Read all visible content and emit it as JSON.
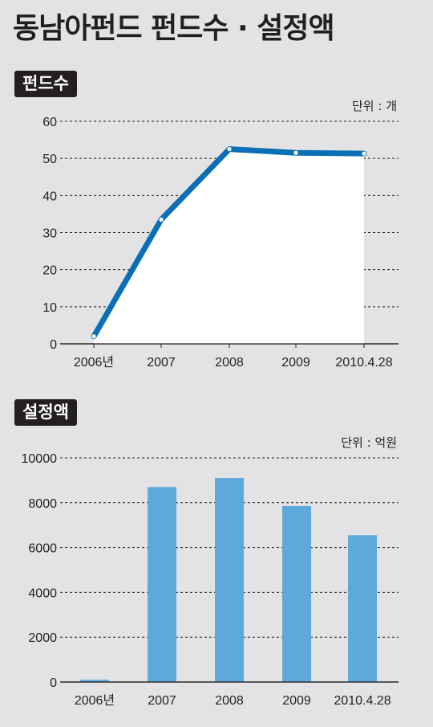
{
  "title": "동남아펀드 펀드수 · 설정액",
  "chart_data": [
    {
      "type": "area",
      "label": "펀드수",
      "unit_label": "단위 : 개",
      "categories": [
        "2006년",
        "2007",
        "2008",
        "2009",
        "2010.4.28"
      ],
      "values": [
        2,
        33.5,
        52.5,
        51.5,
        51.3
      ],
      "ylim": [
        0,
        60
      ],
      "yticks": [
        0,
        10,
        20,
        30,
        40,
        50,
        60
      ],
      "grid": true,
      "line_color": "#0a6fb5",
      "fill_color": "#ffffff"
    },
    {
      "type": "bar",
      "label": "설정액",
      "unit_label": "단위 : 억원",
      "categories": [
        "2006년",
        "2007",
        "2008",
        "2009",
        "2010.4.28"
      ],
      "values": [
        100,
        8700,
        9100,
        7850,
        6550
      ],
      "ylim": [
        0,
        10000
      ],
      "yticks": [
        0,
        2000,
        4000,
        6000,
        8000,
        10000
      ],
      "grid": true,
      "bar_color": "#5ea8dc"
    }
  ]
}
